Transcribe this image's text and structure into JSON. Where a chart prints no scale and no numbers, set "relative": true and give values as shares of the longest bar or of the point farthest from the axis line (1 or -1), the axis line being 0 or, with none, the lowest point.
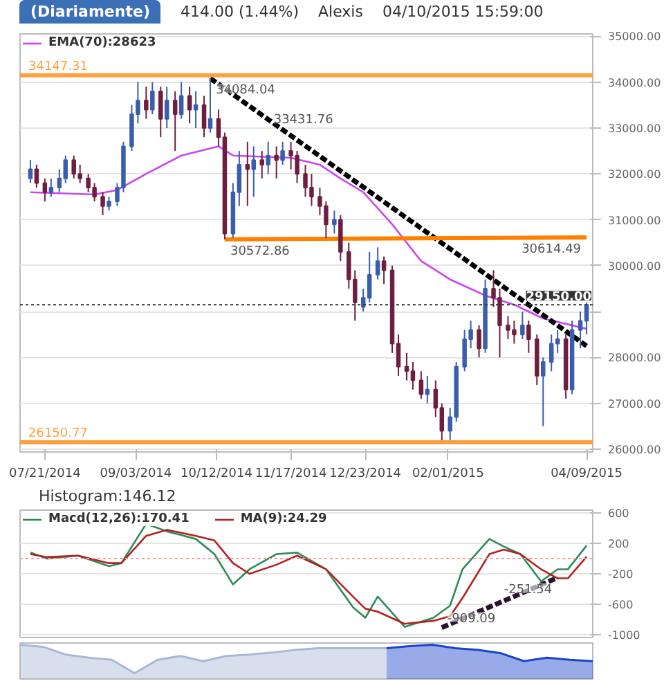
{
  "chart_data": [
    {
      "type": "candlestick",
      "title": "(Diariamente)",
      "annotations": [
        "414.00 (1.44%)",
        "Alexis",
        "04/10/2015 15:59:00",
        {
          "text": "34084.04",
          "x": "2014-10-09",
          "y": 34084.04
        },
        {
          "text": "33431.76",
          "x": "2014-11-06",
          "y": 33431.76
        },
        {
          "text": "30572.86",
          "x": "2014-10-16",
          "y": 30572.86
        },
        {
          "text": "30614.49",
          "x": "2015-04-09",
          "y": 30614.49
        }
      ],
      "x": [
        "2014-07-14",
        "2014-07-17",
        "2014-07-21",
        "2014-07-24",
        "2014-07-28",
        "2014-07-31",
        "2014-08-04",
        "2014-08-07",
        "2014-08-11",
        "2014-08-14",
        "2014-08-18",
        "2014-08-21",
        "2014-08-25",
        "2014-08-28",
        "2014-09-01",
        "2014-09-04",
        "2014-09-08",
        "2014-09-11",
        "2014-09-15",
        "2014-09-18",
        "2014-09-22",
        "2014-09-25",
        "2014-09-29",
        "2014-10-02",
        "2014-10-06",
        "2014-10-09",
        "2014-10-13",
        "2014-10-16",
        "2014-10-20",
        "2014-10-23",
        "2014-10-27",
        "2014-10-30",
        "2014-11-03",
        "2014-11-06",
        "2014-11-10",
        "2014-11-13",
        "2014-11-17",
        "2014-11-20",
        "2014-11-24",
        "2014-11-27",
        "2014-12-01",
        "2014-12-04",
        "2014-12-08",
        "2014-12-11",
        "2014-12-15",
        "2014-12-18",
        "2014-12-22",
        "2014-12-25",
        "2014-12-29",
        "2015-01-01",
        "2015-01-05",
        "2015-01-08",
        "2015-01-12",
        "2015-01-15",
        "2015-01-19",
        "2015-01-22",
        "2015-01-26",
        "2015-01-29",
        "2015-02-02",
        "2015-02-05",
        "2015-02-09",
        "2015-02-12",
        "2015-02-16",
        "2015-02-19",
        "2015-02-23",
        "2015-02-26",
        "2015-03-02",
        "2015-03-05",
        "2015-03-09",
        "2015-03-12",
        "2015-03-16",
        "2015-03-19",
        "2015-03-23",
        "2015-03-26",
        "2015-03-30",
        "2015-04-02",
        "2015-04-06",
        "2015-04-09"
      ],
      "ohlc": [
        [
          31900,
          32300,
          31800,
          32100
        ],
        [
          32100,
          32200,
          31700,
          31800
        ],
        [
          31800,
          31900,
          31400,
          31600
        ],
        [
          31600,
          31900,
          31500,
          31700
        ],
        [
          31700,
          32100,
          31600,
          31900
        ],
        [
          31900,
          32400,
          31800,
          32300
        ],
        [
          32300,
          32400,
          31900,
          32000
        ],
        [
          32000,
          32200,
          31800,
          31900
        ],
        [
          31900,
          32000,
          31600,
          31700
        ],
        [
          31700,
          31800,
          31400,
          31500
        ],
        [
          31500,
          31600,
          31100,
          31300
        ],
        [
          31300,
          31500,
          31200,
          31400
        ],
        [
          31400,
          31800,
          31300,
          31700
        ],
        [
          31700,
          32700,
          31600,
          32600
        ],
        [
          32600,
          33500,
          32500,
          33300
        ],
        [
          33300,
          34000,
          33100,
          33600
        ],
        [
          33600,
          33900,
          33200,
          33400
        ],
        [
          33400,
          34000,
          33300,
          33800
        ],
        [
          33800,
          33900,
          32800,
          33200
        ],
        [
          33200,
          33900,
          33000,
          33600
        ],
        [
          33600,
          33800,
          32500,
          33300
        ],
        [
          33300,
          34000,
          33200,
          33700
        ],
        [
          33700,
          33900,
          33100,
          33400
        ],
        [
          33400,
          33800,
          33000,
          33500
        ],
        [
          33500,
          33700,
          32800,
          33000
        ],
        [
          33000,
          34084.04,
          32900,
          33200
        ],
        [
          33200,
          33400,
          32600,
          32800
        ],
        [
          32800,
          32900,
          30572.86,
          30700
        ],
        [
          30700,
          31800,
          30600,
          31600
        ],
        [
          31600,
          32500,
          31300,
          32200
        ],
        [
          32200,
          32700,
          31300,
          32100
        ],
        [
          32100,
          32600,
          31500,
          32300
        ],
        [
          32300,
          32500,
          31900,
          32200
        ],
        [
          32200,
          32700,
          32000,
          32400
        ],
        [
          32400,
          32600,
          31900,
          32300
        ],
        [
          32300,
          32700,
          32200,
          32500
        ],
        [
          32500,
          32700,
          32100,
          32400
        ],
        [
          32400,
          32500,
          31800,
          32000
        ],
        [
          32000,
          32200,
          31500,
          31700
        ],
        [
          31700,
          32000,
          31300,
          31500
        ],
        [
          31500,
          31700,
          31100,
          31300
        ],
        [
          31300,
          31400,
          30600,
          30900
        ],
        [
          30900,
          31200,
          30700,
          31000
        ],
        [
          31000,
          31100,
          30100,
          30300
        ],
        [
          30300,
          30500,
          29500,
          29700
        ],
        [
          29700,
          29900,
          28800,
          29200
        ],
        [
          29100,
          29500,
          29000,
          29300
        ],
        [
          29300,
          30300,
          29200,
          29800
        ],
        [
          29800,
          30400,
          29700,
          30100
        ],
        [
          30100,
          30200,
          29600,
          29900
        ],
        [
          29900,
          30000,
          28100,
          28300
        ],
        [
          28300,
          28500,
          27600,
          27800
        ],
        [
          27800,
          28100,
          27500,
          27700
        ],
        [
          27700,
          27900,
          27300,
          27500
        ],
        [
          27500,
          27700,
          27100,
          27200
        ],
        [
          27200,
          27600,
          27000,
          27300
        ],
        [
          27300,
          27500,
          26700,
          26900
        ],
        [
          26900,
          27000,
          26150.77,
          26400
        ],
        [
          26400,
          26900,
          26200,
          26700
        ],
        [
          26700,
          27900,
          26600,
          27800
        ],
        [
          27800,
          28600,
          27700,
          28400
        ],
        [
          28400,
          28800,
          28200,
          28600
        ],
        [
          28600,
          28700,
          28000,
          28200
        ],
        [
          28200,
          29700,
          28100,
          29500
        ],
        [
          29500,
          29900,
          29100,
          29300
        ],
        [
          29300,
          29500,
          28000,
          28700
        ],
        [
          28700,
          28900,
          28400,
          28600
        ],
        [
          28600,
          28800,
          28300,
          28500
        ],
        [
          28500,
          29000,
          28400,
          28700
        ],
        [
          28700,
          28800,
          28100,
          28400
        ],
        [
          28400,
          28500,
          27400,
          27600
        ],
        [
          27600,
          28000,
          26500,
          27900
        ],
        [
          27900,
          28500,
          27700,
          28300
        ],
        [
          28300,
          28600,
          28100,
          28400
        ],
        [
          28400,
          28500,
          27100,
          27300
        ],
        [
          27300,
          28800,
          27200,
          28600
        ],
        [
          28600,
          29000,
          28200,
          28800
        ],
        [
          28800,
          29200,
          28500,
          29150
        ]
      ],
      "colors": [
        "#3a5dae",
        "#6e1f3f",
        "#6e1f3f",
        "#3a5dae",
        "#3a5dae",
        "#3a5dae",
        "#6e1f3f",
        "#6e1f3f",
        "#6e1f3f",
        "#6e1f3f",
        "#6e1f3f",
        "#3a5dae",
        "#3a5dae",
        "#3a5dae",
        "#3a5dae",
        "#3a5dae",
        "#6e1f3f",
        "#3a5dae",
        "#6e1f3f",
        "#3a5dae",
        "#6e1f3f",
        "#3a5dae",
        "#6e1f3f",
        "#3a5dae",
        "#6e1f3f",
        "#3a5dae",
        "#6e1f3f",
        "#6e1f3f",
        "#3a5dae",
        "#3a5dae",
        "#6e1f3f",
        "#3a5dae",
        "#6e1f3f",
        "#3a5dae",
        "#6e1f3f",
        "#3a5dae",
        "#6e1f3f",
        "#6e1f3f",
        "#6e1f3f",
        "#6e1f3f",
        "#6e1f3f",
        "#6e1f3f",
        "#3a5dae",
        "#6e1f3f",
        "#6e1f3f",
        "#6e1f3f",
        "#3a5dae",
        "#3a5dae",
        "#3a5dae",
        "#6e1f3f",
        "#6e1f3f",
        "#6e1f3f",
        "#6e1f3f",
        "#6e1f3f",
        "#6e1f3f",
        "#3a5dae",
        "#6e1f3f",
        "#6e1f3f",
        "#3a5dae",
        "#3a5dae",
        "#3a5dae",
        "#3a5dae",
        "#6e1f3f",
        "#3a5dae",
        "#6e1f3f",
        "#6e1f3f",
        "#6e1f3f",
        "#6e1f3f",
        "#3a5dae",
        "#6e1f3f",
        "#6e1f3f",
        "#3a5dae",
        "#3a5dae",
        "#3a5dae",
        "#6e1f3f",
        "#3a5dae",
        "#3a5dae",
        "#3a5dae"
      ],
      "series": [
        {
          "type": "line",
          "name": "EMA(70):28623",
          "color": "#cc44ee",
          "x": [
            "2014-07-14",
            "2014-08-14",
            "2014-08-25",
            "2014-09-08",
            "2014-09-25",
            "2014-10-13",
            "2014-10-20",
            "2014-11-17",
            "2014-12-01",
            "2014-12-11",
            "2014-12-22",
            "2015-01-05",
            "2015-01-19",
            "2015-02-02",
            "2015-02-19",
            "2015-03-05",
            "2015-03-19",
            "2015-04-09"
          ],
          "values": [
            31600,
            31550,
            31650,
            32000,
            32400,
            32600,
            32400,
            32350,
            32200,
            31900,
            31600,
            30900,
            30100,
            29700,
            29350,
            29150,
            28850,
            28623
          ]
        },
        {
          "type": "line",
          "color": "#000000",
          "line_style": "dashed",
          "x": [
            "2014-10-09",
            "2015-04-09"
          ],
          "values": [
            34084.04,
            28250
          ]
        },
        {
          "type": "line",
          "color": "#ff7f00",
          "x": [
            "2014-10-16",
            "2015-04-09"
          ],
          "values": [
            30572.86,
            30614.49
          ]
        }
      ],
      "ref_lines": [
        {
          "axis": "y",
          "value": 34147.31,
          "label": "34147.31",
          "color": "#ffa040"
        },
        {
          "axis": "y",
          "value": 26150.77,
          "label": "26150.77",
          "color": "#ffa040"
        },
        {
          "axis": "y",
          "value": 29150,
          "label": "29150.00",
          "color": "#333333",
          "line_style": "dotted"
        }
      ],
      "xlim": [
        "2014-07-09",
        "2015-04-12"
      ],
      "xticks": [
        {
          "value": "2014-07-21",
          "label": "07/21/2014"
        },
        {
          "value": "2014-09-03",
          "label": "09/03/2014"
        },
        {
          "value": "2014-10-12",
          "label": "10/12/2014"
        },
        {
          "value": "2014-11-17",
          "label": "11/17/2014"
        },
        {
          "value": "2014-12-23",
          "label": "12/23/2014"
        },
        {
          "value": "2015-02-01",
          "label": "02/01/2015"
        },
        {
          "value": "2015-04-09",
          "label": "04/09/2015"
        }
      ],
      "ylim": [
        25940,
        35050
      ],
      "yticks": [
        {
          "value": 26000,
          "label": "26000.00"
        },
        {
          "value": 27000,
          "label": "27000.00"
        },
        {
          "value": 28000,
          "label": "28000.00"
        },
        {
          "value": 29000,
          "label": null
        },
        {
          "value": 30000,
          "label": "30000.00"
        },
        {
          "value": 31000,
          "label": "31000.00"
        },
        {
          "value": 32000,
          "label": "32000.00"
        },
        {
          "value": 33000,
          "label": "33000.00"
        },
        {
          "value": 34000,
          "label": "34000.00"
        },
        {
          "value": 35000,
          "label": "35000.00"
        }
      ],
      "grid": "y",
      "legend": "top left"
    },
    {
      "type": "line",
      "annotations": [
        "Histogram:146.12",
        {
          "text": "-909.09",
          "x": "2015-01-29",
          "y": -909.09
        },
        {
          "text": "-251.54",
          "x": "2015-03-26",
          "y": -251.54
        }
      ],
      "x": [
        "2014-07-14",
        "2014-07-22",
        "2014-08-06",
        "2014-08-21",
        "2014-08-27",
        "2014-09-08",
        "2014-09-18",
        "2014-10-02",
        "2014-10-11",
        "2014-10-20",
        "2014-10-28",
        "2014-11-10",
        "2014-11-20",
        "2014-12-04",
        "2014-12-17",
        "2014-12-23",
        "2014-12-29",
        "2015-01-11",
        "2015-01-25",
        "2015-02-02",
        "2015-02-08",
        "2015-02-21",
        "2015-02-28",
        "2015-03-08",
        "2015-03-18",
        "2015-03-26",
        "2015-03-31",
        "2015-04-09"
      ],
      "series": [
        {
          "name": "Macd(12,26):170.41",
          "color": "#2e8b57",
          "values": [
            80,
            0,
            40,
            -100,
            -60,
            460,
            360,
            260,
            60,
            -340,
            -140,
            60,
            80,
            -140,
            -640,
            -780,
            -500,
            -900,
            -780,
            -620,
            -140,
            260,
            160,
            60,
            -300,
            -140,
            -140,
            170.41
          ]
        },
        {
          "name": "MA(9):24.29",
          "color": "#b22222",
          "values": [
            60,
            20,
            40,
            -60,
            -60,
            300,
            380,
            300,
            240,
            -60,
            -200,
            -80,
            40,
            -140,
            -500,
            -660,
            -700,
            -860,
            -820,
            -760,
            -520,
            60,
            120,
            60,
            -140,
            -260,
            -260,
            24.29
          ]
        },
        {
          "color": "#2b1030",
          "line_style": "dashed",
          "x": [
            "2015-01-29",
            "2015-03-26"
          ],
          "values": [
            -909.09,
            -251.54
          ]
        }
      ],
      "ref_lines": [
        {
          "axis": "y",
          "value": 0,
          "color": "#ff9999",
          "line_style": "dotted"
        }
      ],
      "xlim": [
        "2014-07-09",
        "2015-04-12"
      ],
      "ylim": [
        -1040,
        640
      ],
      "yticks": [
        600,
        200,
        -200,
        -600,
        -1000
      ],
      "grid": "y",
      "legend": "top left",
      "tick_labels": "y"
    },
    {
      "type": "area",
      "relative": true,
      "tick_labels": false,
      "categories": [
        null,
        null,
        null,
        null,
        null,
        null,
        null,
        null,
        null,
        null,
        null,
        null,
        null,
        null,
        null,
        null,
        null,
        null,
        null,
        null,
        null,
        null,
        null,
        null,
        null,
        null
      ],
      "series": [
        {
          "color": "#a9b8d4",
          "values": [
            1.0,
            0.94,
            0.71,
            0.62,
            0.56,
            0.17,
            0.56,
            0.67,
            0.52,
            0.67,
            0.71,
            0.77,
            0.85,
            0.9,
            0.9,
            0.9,
            0.9,
            null,
            null,
            null,
            null,
            null,
            null,
            null,
            null,
            null
          ]
        },
        {
          "color": "#1a44cc",
          "values": [
            null,
            null,
            null,
            null,
            null,
            null,
            null,
            null,
            null,
            null,
            null,
            null,
            null,
            null,
            null,
            null,
            0.9,
            0.96,
            1.0,
            0.9,
            0.85,
            0.75,
            0.52,
            0.62,
            0.56,
            0.52
          ]
        }
      ]
    }
  ]
}
